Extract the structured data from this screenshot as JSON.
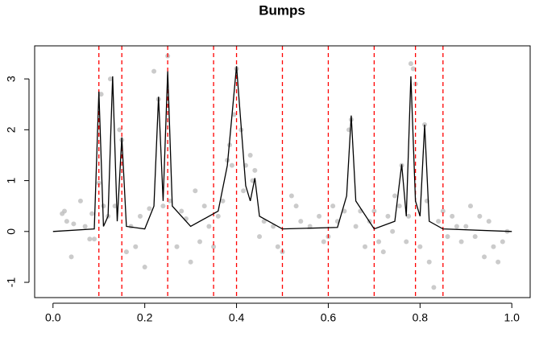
{
  "chart_data": {
    "type": "scatter",
    "title": "Bumps",
    "xlim": [
      -0.04,
      1.04
    ],
    "ylim": [
      -1.3,
      3.65
    ],
    "xticks": [
      {
        "value": 0,
        "label": "0.0"
      },
      {
        "value": 0.2,
        "label": "0.2"
      },
      {
        "value": 0.4,
        "label": "0.4"
      },
      {
        "value": 0.6,
        "label": "0.6"
      },
      {
        "value": 0.8,
        "label": "0.8"
      },
      {
        "value": 1,
        "label": "1.0"
      }
    ],
    "yticks": [
      -1,
      0,
      1,
      2,
      3
    ],
    "points": {
      "color": "#bebebe",
      "x": [
        0.02,
        0.025,
        0.03,
        0.04,
        0.045,
        0.06,
        0.07,
        0.08,
        0.085,
        0.09,
        0.1,
        0.105,
        0.11,
        0.12,
        0.125,
        0.135,
        0.145,
        0.15,
        0.16,
        0.17,
        0.18,
        0.19,
        0.2,
        0.21,
        0.22,
        0.23,
        0.24,
        0.25,
        0.255,
        0.27,
        0.28,
        0.29,
        0.3,
        0.31,
        0.32,
        0.33,
        0.34,
        0.35,
        0.36,
        0.37,
        0.38,
        0.385,
        0.39,
        0.395,
        0.4,
        0.41,
        0.415,
        0.42,
        0.43,
        0.435,
        0.44,
        0.45,
        0.46,
        0.48,
        0.49,
        0.5,
        0.52,
        0.53,
        0.54,
        0.56,
        0.58,
        0.59,
        0.6,
        0.61,
        0.62,
        0.635,
        0.645,
        0.65,
        0.66,
        0.67,
        0.68,
        0.69,
        0.7,
        0.71,
        0.72,
        0.73,
        0.74,
        0.745,
        0.755,
        0.76,
        0.77,
        0.775,
        0.78,
        0.785,
        0.79,
        0.8,
        0.81,
        0.815,
        0.82,
        0.83,
        0.84,
        0.85,
        0.86,
        0.87,
        0.88,
        0.89,
        0.9,
        0.91,
        0.92,
        0.93,
        0.94,
        0.95,
        0.96,
        0.97,
        0.98,
        0.99
      ],
      "y": [
        0.35,
        0.4,
        0.2,
        -0.5,
        0.15,
        0.6,
        0.1,
        -0.15,
        0.35,
        -0.15,
        0.95,
        2.7,
        0.5,
        0.3,
        3.0,
        0.5,
        2.0,
        1.8,
        -0.4,
        0.1,
        -0.3,
        0.3,
        -0.7,
        0.45,
        3.15,
        2.6,
        0.5,
        3.45,
        0.6,
        -0.3,
        0.4,
        0.25,
        -0.6,
        0.8,
        -0.2,
        0.5,
        0.1,
        -0.3,
        0.3,
        0.6,
        1.4,
        1.7,
        1.3,
        2.3,
        3.2,
        2.0,
        0.8,
        1.3,
        1.5,
        1.0,
        1.2,
        -0.1,
        0.2,
        0.1,
        -0.3,
        -0.4,
        0.7,
        0.5,
        0.2,
        0.1,
        0.3,
        -0.2,
        -0.1,
        0.5,
        0.2,
        0.4,
        2.0,
        2.2,
        0.1,
        0.4,
        -0.3,
        0.2,
        0.4,
        -0.2,
        -0.4,
        0.3,
        0.0,
        0.7,
        0.5,
        1.3,
        -0.2,
        0.3,
        3.3,
        3.2,
        2.9,
        -0.3,
        2.1,
        0.6,
        -0.6,
        -1.1,
        0.2,
        0.4,
        -0.1,
        0.3,
        0.1,
        -0.2,
        0.1,
        0.5,
        -0.1,
        0.3,
        -0.5,
        0.2,
        -0.3,
        -0.6,
        -0.2,
        0.0
      ]
    },
    "line": {
      "color": "#000000",
      "x": [
        0,
        0.09,
        0.1,
        0.11,
        0.12,
        0.13,
        0.14,
        0.15,
        0.16,
        0.2,
        0.22,
        0.23,
        0.24,
        0.25,
        0.26,
        0.3,
        0.36,
        0.38,
        0.4,
        0.42,
        0.43,
        0.44,
        0.45,
        0.5,
        0.62,
        0.64,
        0.65,
        0.66,
        0.7,
        0.745,
        0.76,
        0.77,
        0.78,
        0.79,
        0.8,
        0.81,
        0.82,
        0.85,
        1
      ],
      "y": [
        0,
        0.05,
        2.75,
        0.1,
        0.3,
        3.05,
        0.2,
        1.85,
        0.1,
        0.05,
        0.5,
        2.65,
        0.6,
        3.15,
        0.5,
        0.1,
        0.4,
        1.3,
        3.25,
        0.9,
        0.6,
        1.05,
        0.3,
        0.05,
        0.08,
        0.7,
        2.28,
        0.6,
        0.05,
        0.2,
        1.32,
        0.3,
        3.05,
        0.6,
        0.3,
        2.1,
        0.2,
        0.05,
        0
      ]
    },
    "vlines": {
      "color": "#ff0000",
      "x": [
        0.1,
        0.15,
        0.25,
        0.35,
        0.4,
        0.5,
        0.6,
        0.7,
        0.79,
        0.85
      ]
    }
  }
}
